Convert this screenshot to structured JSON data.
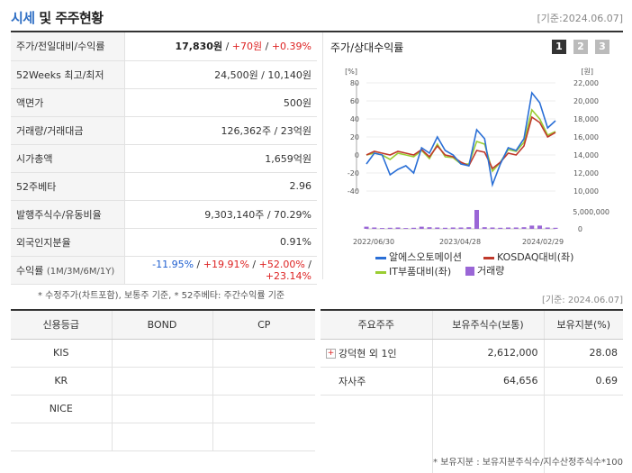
{
  "header": {
    "title_accent": "시세",
    "title_rest": " 및 주주현황",
    "date": "[기준:2024.06.07]"
  },
  "summary": [
    {
      "label": "주가/전일대비/수익률"
    },
    {
      "label": "52Weeks 최고/최저",
      "value": "24,500원 / 10,140원"
    },
    {
      "label": "액면가",
      "value": "500원"
    },
    {
      "label": "거래량/거래대금",
      "value": "126,362주 / 23억원"
    },
    {
      "label": "시가총액",
      "value": "1,659억원"
    },
    {
      "label": "52주베타",
      "value": "2.96"
    },
    {
      "label": "발행주식수/유동비율",
      "value": "9,303,140주 / 70.29%"
    },
    {
      "label": "외국인지분율",
      "value": "0.91%"
    },
    {
      "label": "수익률",
      "label_sub": "(1M/3M/6M/1Y)"
    }
  ],
  "price": {
    "price": "17,830원",
    "sep": " / ",
    "change": "+70원",
    "rate": "+0.39%"
  },
  "returns": {
    "m1": "-11.95%",
    "m3": "+19.91%",
    "m6": "+52.00%",
    "y1": "+23.14%",
    "sep": " / "
  },
  "chart_title": "주가/상대수익률",
  "chart_pages": [
    "1",
    "2",
    "3"
  ],
  "chart_data": {
    "type": "line",
    "left_axis_unit": "[%]",
    "right_axis_unit": "[원]",
    "left_ticks": [
      80,
      60,
      40,
      20,
      0,
      -20,
      -40
    ],
    "right_ticks": [
      "22,000",
      "20,000",
      "18,000",
      "16,000",
      "14,000",
      "12,000",
      "10,000"
    ],
    "volume_ticks": [
      "5,000,000",
      "0"
    ],
    "x_labels": [
      "2022/06/30",
      "2023/04/28",
      "2024/02/29"
    ],
    "ylim": [
      -40,
      80
    ],
    "series": [
      {
        "name": "알에스오토메이션",
        "color": "#2a6fd6",
        "values": [
          -10,
          2,
          0,
          -22,
          -16,
          -12,
          -20,
          8,
          2,
          20,
          5,
          0,
          -10,
          -12,
          28,
          18,
          -33,
          -10,
          8,
          5,
          18,
          69,
          58,
          30,
          38
        ]
      },
      {
        "name": "KOSDAQ대비(좌)",
        "color": "#c0392b",
        "values": [
          0,
          4,
          2,
          0,
          4,
          2,
          0,
          6,
          -2,
          10,
          0,
          -2,
          -8,
          -12,
          5,
          3,
          -15,
          -8,
          2,
          0,
          10,
          42,
          36,
          20,
          25
        ]
      },
      {
        "name": "IT부품대비(좌)",
        "color": "#9acd32",
        "values": [
          0,
          2,
          0,
          -5,
          2,
          0,
          -2,
          5,
          -4,
          12,
          -2,
          -3,
          -10,
          -10,
          15,
          12,
          -18,
          -8,
          6,
          4,
          14,
          50,
          40,
          22,
          26
        ]
      }
    ],
    "volume": {
      "name": "거래량",
      "color": "#9a66d6",
      "values": [
        0.08,
        0.05,
        0.03,
        0.04,
        0.05,
        0.03,
        0.04,
        0.08,
        0.06,
        0.05,
        0.04,
        0.05,
        0.05,
        0.06,
        0.7,
        0.06,
        0.05,
        0.04,
        0.05,
        0.05,
        0.06,
        0.12,
        0.12,
        0.05,
        0.04
      ]
    }
  },
  "note1": "* 수정주가(차트포함), 보통주 기준, * 52주베타: 주간수익률 기준",
  "date2": "[기준: 2024.06.07]",
  "credit": {
    "headers": [
      "신용등급",
      "BOND",
      "CP"
    ],
    "rows": [
      [
        "KIS",
        "",
        ""
      ],
      [
        "KR",
        "",
        ""
      ],
      [
        "NICE",
        "",
        ""
      ],
      [
        "",
        "",
        ""
      ]
    ]
  },
  "shareholders": {
    "headers": [
      "주요주주",
      "보유주식수(보통)",
      "보유지분(%)"
    ],
    "rows": [
      {
        "name": "강덕현 외 1인",
        "shares": "2,612,000",
        "pct": "28.08"
      },
      {
        "name": "자사주",
        "shares": "64,656",
        "pct": "0.69"
      },
      {
        "name": "",
        "shares": "",
        "pct": ""
      }
    ]
  },
  "note2": "* 보유지분 : 보유지분주식수/지수산정주식수*100"
}
